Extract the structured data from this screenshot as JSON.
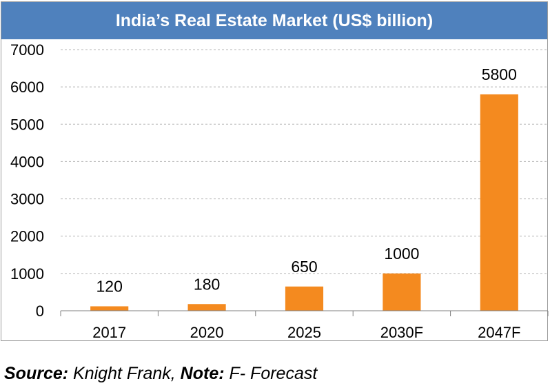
{
  "chart_data": {
    "type": "bar",
    "title": "India’s Real Estate Market (US$ billion)",
    "categories": [
      "2017",
      "2020",
      "2025",
      "2030F",
      "2047F"
    ],
    "values": [
      120,
      180,
      650,
      1000,
      5800
    ],
    "data_labels": [
      "120",
      "180",
      "650",
      "1000",
      "5800"
    ],
    "xlabel": "",
    "ylabel": "",
    "ylim": [
      0,
      7000
    ],
    "yticks": [
      "0",
      "1000",
      "2000",
      "3000",
      "4000",
      "5000",
      "6000",
      "7000"
    ],
    "grid": true,
    "legend": "none",
    "bar_color": "#f48a1f",
    "title_bg_color": "#4f81bd"
  },
  "footer": {
    "source_label": "Source:",
    "source_value": " Knight Frank, ",
    "note_label": "Note:",
    "note_value": " F- Forecast"
  }
}
